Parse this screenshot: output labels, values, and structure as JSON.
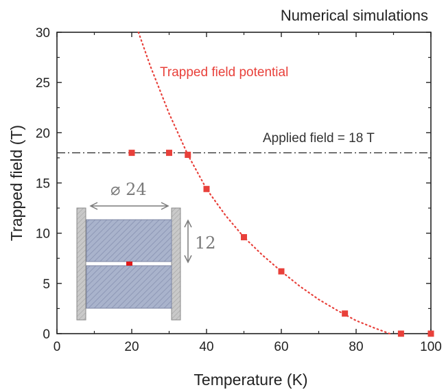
{
  "chart_data": {
    "type": "scatter",
    "title": "Numerical simulations",
    "xlabel": "Temperature (K)",
    "ylabel": "Trapped field (T)",
    "xlim": [
      0,
      100
    ],
    "ylim": [
      0,
      30
    ],
    "xticks": [
      "0",
      "20",
      "40",
      "60",
      "80",
      "100"
    ],
    "yticks": [
      "0",
      "5",
      "10",
      "15",
      "20",
      "25",
      "30"
    ],
    "grid": false,
    "series": [
      {
        "type": "scatter",
        "color": "#e8403a",
        "points": [
          {
            "x": 20,
            "y": 18.0
          },
          {
            "x": 30,
            "y": 18.0
          },
          {
            "x": 35,
            "y": 17.8
          },
          {
            "x": 40,
            "y": 14.4
          },
          {
            "x": 50,
            "y": 9.6
          },
          {
            "x": 60,
            "y": 6.2
          },
          {
            "x": 77,
            "y": 2.0
          },
          {
            "x": 92,
            "y": 0.0
          },
          {
            "x": 100,
            "y": 0.0
          }
        ]
      },
      {
        "type": "line",
        "style": "dotted",
        "color": "#e8403a",
        "points": [
          {
            "x": 21.8,
            "y": 30
          },
          {
            "x": 25,
            "y": 26.6
          },
          {
            "x": 30,
            "y": 21.9
          },
          {
            "x": 35,
            "y": 17.8
          },
          {
            "x": 40,
            "y": 14.4
          },
          {
            "x": 45,
            "y": 11.8
          },
          {
            "x": 50,
            "y": 9.6
          },
          {
            "x": 55,
            "y": 7.8
          },
          {
            "x": 60,
            "y": 6.2
          },
          {
            "x": 65,
            "y": 4.7
          },
          {
            "x": 70,
            "y": 3.4
          },
          {
            "x": 75,
            "y": 2.3
          },
          {
            "x": 80,
            "y": 1.3
          },
          {
            "x": 85,
            "y": 0.55
          },
          {
            "x": 89,
            "y": 0.0
          }
        ]
      }
    ],
    "reference_line": {
      "y": 18,
      "color": "#333333",
      "style": "dash-dot"
    },
    "annotations": {
      "curve_label": "Trapped field potential",
      "applied_field_label": "Applied field = 18 T"
    },
    "inset": {
      "diameter_label": "⌀ 24",
      "height_label": "12"
    }
  }
}
